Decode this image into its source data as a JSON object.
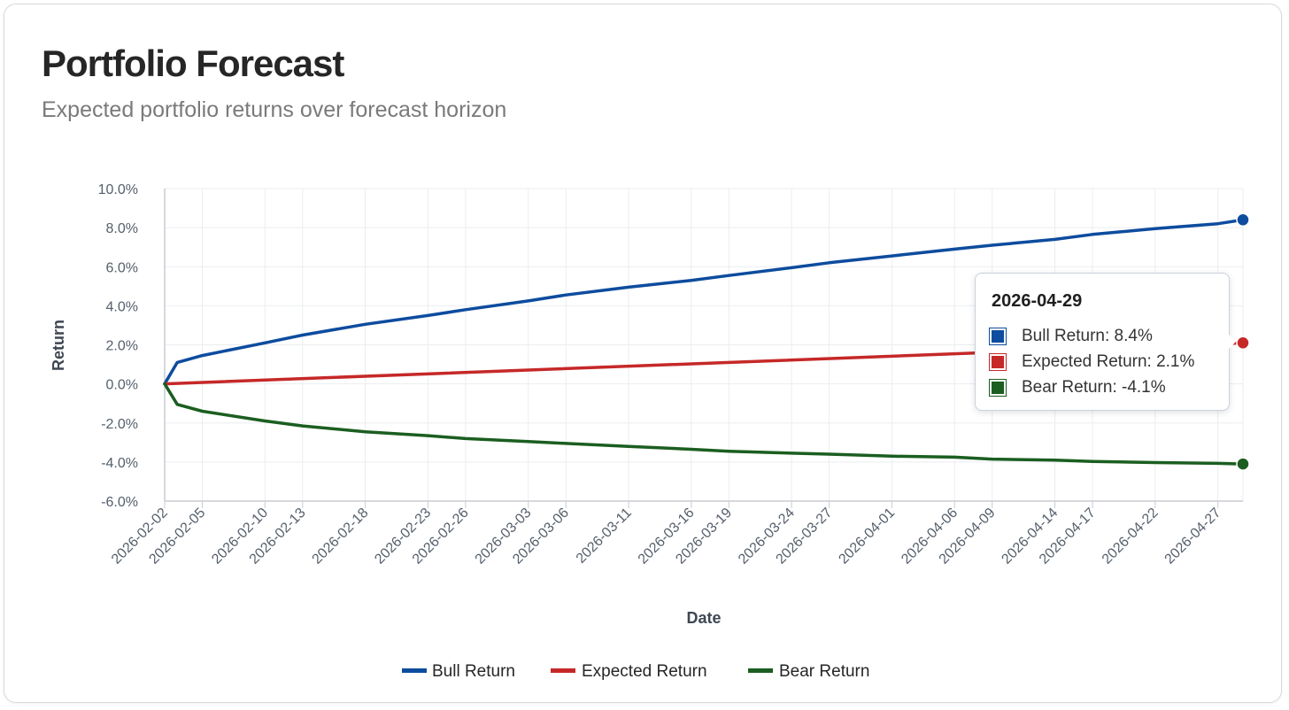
{
  "header": {
    "title": "Portfolio Forecast",
    "subtitle": "Expected portfolio returns over forecast horizon"
  },
  "colors": {
    "bull": "#0d4c9e",
    "expected": "#c62828",
    "bear": "#1b5e20",
    "grid": "#ebedf0",
    "axis": "#c8ccd2"
  },
  "chart_data": {
    "type": "line",
    "xlabel": "Date",
    "ylabel": "Return",
    "ylim": [
      -6.0,
      10.0
    ],
    "y_ticks": [
      "-6.0%",
      "-4.0%",
      "-2.0%",
      "0.0%",
      "2.0%",
      "4.0%",
      "6.0%",
      "8.0%",
      "10.0%"
    ],
    "y_tick_values": [
      -6,
      -4,
      -2,
      0,
      2,
      4,
      6,
      8,
      10
    ],
    "x_range": [
      "2026-02-02",
      "2026-04-29"
    ],
    "x_ticks": [
      "2026-02-02",
      "2026-02-05",
      "2026-02-10",
      "2026-02-13",
      "2026-02-18",
      "2026-02-23",
      "2026-02-26",
      "2026-03-03",
      "2026-03-06",
      "2026-03-11",
      "2026-03-16",
      "2026-03-19",
      "2026-03-24",
      "2026-03-27",
      "2026-04-01",
      "2026-04-06",
      "2026-04-09",
      "2026-04-14",
      "2026-04-17",
      "2026-04-22",
      "2026-04-27"
    ],
    "grid": true,
    "legend_position": "bottom",
    "series": [
      {
        "name": "Bull Return",
        "color": "#0d4c9e",
        "points": [
          [
            "2026-02-02",
            0.0
          ],
          [
            "2026-02-03",
            1.1
          ],
          [
            "2026-02-05",
            1.45
          ],
          [
            "2026-02-10",
            2.1
          ],
          [
            "2026-02-13",
            2.5
          ],
          [
            "2026-02-18",
            3.05
          ],
          [
            "2026-02-23",
            3.5
          ],
          [
            "2026-02-26",
            3.8
          ],
          [
            "2026-03-03",
            4.25
          ],
          [
            "2026-03-06",
            4.55
          ],
          [
            "2026-03-11",
            4.95
          ],
          [
            "2026-03-16",
            5.3
          ],
          [
            "2026-03-19",
            5.55
          ],
          [
            "2026-03-24",
            5.95
          ],
          [
            "2026-03-27",
            6.2
          ],
          [
            "2026-04-01",
            6.55
          ],
          [
            "2026-04-06",
            6.9
          ],
          [
            "2026-04-09",
            7.1
          ],
          [
            "2026-04-14",
            7.4
          ],
          [
            "2026-04-17",
            7.65
          ],
          [
            "2026-04-22",
            7.95
          ],
          [
            "2026-04-27",
            8.2
          ],
          [
            "2026-04-29",
            8.4
          ]
        ]
      },
      {
        "name": "Expected Return",
        "color": "#c62828",
        "points": [
          [
            "2026-02-02",
            0.0
          ],
          [
            "2026-04-29",
            2.1
          ]
        ]
      },
      {
        "name": "Bear Return",
        "color": "#1b5e20",
        "points": [
          [
            "2026-02-02",
            0.0
          ],
          [
            "2026-02-03",
            -1.05
          ],
          [
            "2026-02-05",
            -1.4
          ],
          [
            "2026-02-10",
            -1.9
          ],
          [
            "2026-02-13",
            -2.15
          ],
          [
            "2026-02-18",
            -2.45
          ],
          [
            "2026-02-23",
            -2.65
          ],
          [
            "2026-02-26",
            -2.8
          ],
          [
            "2026-03-03",
            -2.95
          ],
          [
            "2026-03-06",
            -3.05
          ],
          [
            "2026-03-11",
            -3.2
          ],
          [
            "2026-03-16",
            -3.35
          ],
          [
            "2026-03-19",
            -3.45
          ],
          [
            "2026-03-24",
            -3.55
          ],
          [
            "2026-03-27",
            -3.6
          ],
          [
            "2026-04-01",
            -3.7
          ],
          [
            "2026-04-06",
            -3.75
          ],
          [
            "2026-04-09",
            -3.85
          ],
          [
            "2026-04-14",
            -3.9
          ],
          [
            "2026-04-17",
            -3.97
          ],
          [
            "2026-04-22",
            -4.03
          ],
          [
            "2026-04-27",
            -4.07
          ],
          [
            "2026-04-29",
            -4.1
          ]
        ]
      }
    ]
  },
  "tooltip": {
    "title": "2026-04-29",
    "rows": [
      {
        "label": "Bull Return: 8.4%",
        "color": "#0d4c9e"
      },
      {
        "label": "Expected Return: 2.1%",
        "color": "#c62828"
      },
      {
        "label": "Bear Return: -4.1%",
        "color": "#1b5e20"
      }
    ]
  },
  "legend": [
    {
      "label": "Bull Return",
      "color": "#0d4c9e"
    },
    {
      "label": "Expected Return",
      "color": "#c62828"
    },
    {
      "label": "Bear Return",
      "color": "#1b5e20"
    }
  ]
}
